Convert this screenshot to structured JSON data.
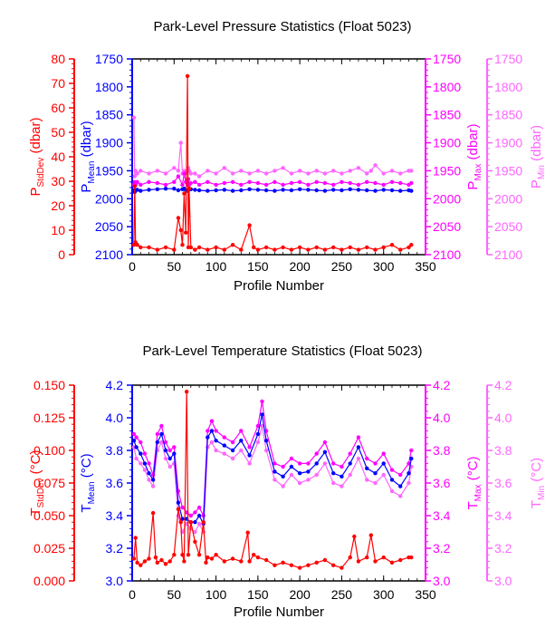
{
  "colors": {
    "stddev": "#ff0000",
    "mean": "#0000ff",
    "max": "#ff00ff",
    "min": "#ff66ff",
    "axis": "#000000"
  },
  "chart_data": [
    {
      "type": "line",
      "title": "Park-Level Pressure Statistics (Float 5023)",
      "xlabel": "Profile Number",
      "xlim": [
        0,
        350
      ],
      "xticks": [
        "0",
        "50",
        "100",
        "150",
        "200",
        "250",
        "300",
        "350"
      ],
      "axes": {
        "stddev": {
          "label_main": "P",
          "label_sub": "StdDev",
          "label_unit": " (dbar)",
          "range": [
            0,
            80
          ],
          "ticks": [
            "0",
            "10",
            "20",
            "30",
            "40",
            "50",
            "60",
            "70",
            "80"
          ]
        },
        "mean": {
          "label_main": "P",
          "label_sub": "Mean",
          "label_unit": " (dbar)",
          "range": [
            2100,
            1750
          ],
          "ticks": [
            "2100",
            "2050",
            "2000",
            "1950",
            "1900",
            "1850",
            "1800",
            "1750"
          ]
        },
        "max": {
          "label_main": "P",
          "label_sub": "Max",
          "label_unit": " (dbar)",
          "range": [
            2100,
            1750
          ],
          "ticks": [
            "2100",
            "2050",
            "2000",
            "1950",
            "1900",
            "1850",
            "1800",
            "1750"
          ]
        },
        "min": {
          "label_main": "P",
          "label_sub": "Min",
          "label_unit": " (dbar)",
          "range": [
            2100,
            1750
          ],
          "ticks": [
            "2100",
            "2050",
            "2000",
            "1950",
            "1900",
            "1850",
            "1800",
            "1750"
          ]
        }
      },
      "series": [
        {
          "key": "min",
          "x": [
            2,
            3,
            4,
            6,
            10,
            20,
            30,
            40,
            50,
            55,
            58,
            60,
            62,
            64,
            66,
            67,
            68,
            70,
            75,
            80,
            90,
            100,
            110,
            120,
            130,
            140,
            150,
            160,
            170,
            180,
            190,
            200,
            210,
            220,
            230,
            240,
            250,
            260,
            270,
            280,
            285,
            290,
            300,
            310,
            320,
            330,
            333
          ],
          "y": [
            1855,
            1960,
            1950,
            1955,
            1950,
            1955,
            1950,
            1955,
            1945,
            1950,
            1900,
            1955,
            1950,
            1955,
            1950,
            1945,
            1950,
            1955,
            1955,
            1960,
            1950,
            1955,
            1945,
            1955,
            1950,
            1955,
            1950,
            1955,
            1950,
            1945,
            1955,
            1950,
            1955,
            1950,
            1955,
            1950,
            1955,
            1950,
            1945,
            1955,
            1950,
            1940,
            1955,
            1950,
            1955,
            1950,
            1950
          ]
        },
        {
          "key": "max",
          "x": [
            2,
            3,
            4,
            6,
            10,
            20,
            30,
            40,
            50,
            55,
            60,
            62,
            64,
            66,
            67,
            68,
            70,
            75,
            80,
            90,
            100,
            110,
            120,
            130,
            140,
            150,
            160,
            170,
            180,
            190,
            200,
            210,
            220,
            230,
            240,
            250,
            260,
            270,
            280,
            290,
            300,
            310,
            320,
            330,
            333
          ],
          "y": [
            1975,
            1970,
            1975,
            1970,
            1975,
            1970,
            1972,
            1975,
            1970,
            1960,
            1975,
            1955,
            1970,
            1975,
            1965,
            1975,
            1972,
            1970,
            1975,
            1970,
            1975,
            1972,
            1970,
            1975,
            1970,
            1972,
            1975,
            1970,
            1975,
            1972,
            1970,
            1975,
            1970,
            1972,
            1975,
            1970,
            1972,
            1975,
            1970,
            1972,
            1975,
            1970,
            1972,
            1975,
            1972
          ]
        },
        {
          "key": "mean",
          "x": [
            2,
            3,
            4,
            6,
            10,
            20,
            30,
            40,
            50,
            55,
            60,
            62,
            64,
            66,
            67,
            68,
            70,
            75,
            80,
            90,
            100,
            110,
            120,
            130,
            140,
            150,
            160,
            170,
            180,
            190,
            200,
            210,
            220,
            230,
            240,
            250,
            260,
            270,
            280,
            290,
            300,
            310,
            320,
            330,
            333
          ],
          "y": [
            1985,
            1988,
            1985,
            1984,
            1986,
            1984,
            1983,
            1982,
            1982,
            1985,
            1983,
            1982,
            1984,
            1986,
            1985,
            1982,
            1983,
            1984,
            1985,
            1986,
            1985,
            1984,
            1986,
            1985,
            1983,
            1984,
            1985,
            1986,
            1984,
            1985,
            1983,
            1984,
            1985,
            1986,
            1984,
            1985,
            1983,
            1984,
            1985,
            1986,
            1984,
            1985,
            1986,
            1985,
            1986
          ]
        },
        {
          "key": "stddev",
          "x": [
            2,
            3,
            4,
            6,
            10,
            20,
            30,
            40,
            50,
            55,
            58,
            60,
            62,
            64,
            66,
            67,
            68,
            70,
            75,
            80,
            90,
            100,
            110,
            120,
            130,
            140,
            145,
            150,
            160,
            170,
            180,
            190,
            200,
            210,
            220,
            230,
            240,
            250,
            260,
            270,
            280,
            290,
            300,
            310,
            320,
            330,
            333
          ],
          "y": [
            4,
            28,
            5,
            4,
            3,
            3,
            2,
            3,
            2,
            15,
            10,
            4,
            25,
            9,
            73,
            3,
            27,
            3,
            2,
            3,
            2,
            3,
            2,
            4,
            2,
            12,
            3,
            2,
            3,
            2,
            3,
            2,
            3,
            2,
            3,
            2,
            3,
            2,
            3,
            2,
            3,
            2,
            3,
            4,
            2,
            3,
            4
          ]
        }
      ]
    },
    {
      "type": "line",
      "title": "Park-Level Temperature Statistics (Float 5023)",
      "xlabel": "Profile Number",
      "xlim": [
        0,
        350
      ],
      "xticks": [
        "0",
        "50",
        "100",
        "150",
        "200",
        "250",
        "300",
        "350"
      ],
      "axes": {
        "stddev": {
          "label_main": "T",
          "label_sub": "StdDev",
          "label_unit": " (°C)",
          "range": [
            0,
            0.15
          ],
          "ticks": [
            "0.000",
            "0.025",
            "0.050",
            "0.075",
            "0.100",
            "0.125",
            "0.150"
          ]
        },
        "mean": {
          "label_main": "T",
          "label_sub": "Mean",
          "label_unit": " (°C)",
          "range": [
            3.0,
            4.2
          ],
          "ticks": [
            "3.0",
            "3.2",
            "3.4",
            "3.6",
            "3.8",
            "4.0",
            "4.2"
          ]
        },
        "max": {
          "label_main": "T",
          "label_sub": "Max",
          "label_unit": " (°C)",
          "range": [
            3.0,
            4.2
          ],
          "ticks": [
            "3.0",
            "3.2",
            "3.4",
            "3.6",
            "3.8",
            "4.0",
            "4.2"
          ]
        },
        "min": {
          "label_main": "T",
          "label_sub": "Min",
          "label_unit": " (°C)",
          "range": [
            3.0,
            4.2
          ],
          "ticks": [
            "3.0",
            "3.2",
            "3.4",
            "3.6",
            "3.8",
            "4.0",
            "4.2"
          ]
        }
      },
      "series": [
        {
          "key": "min",
          "x": [
            2,
            5,
            10,
            15,
            20,
            25,
            30,
            35,
            40,
            45,
            50,
            55,
            60,
            65,
            70,
            75,
            80,
            85,
            90,
            95,
            100,
            110,
            120,
            130,
            140,
            150,
            155,
            160,
            170,
            180,
            190,
            200,
            210,
            220,
            230,
            240,
            250,
            260,
            270,
            280,
            290,
            300,
            310,
            320,
            330,
            333
          ],
          "y": [
            3.82,
            3.75,
            3.72,
            3.68,
            3.62,
            3.58,
            3.8,
            3.85,
            3.75,
            3.7,
            3.72,
            3.4,
            3.3,
            3.35,
            3.32,
            3.3,
            3.35,
            3.3,
            3.82,
            3.85,
            3.8,
            3.78,
            3.75,
            3.8,
            3.72,
            3.85,
            3.95,
            3.8,
            3.62,
            3.58,
            3.65,
            3.6,
            3.62,
            3.65,
            3.72,
            3.6,
            3.58,
            3.65,
            3.75,
            3.62,
            3.6,
            3.65,
            3.55,
            3.52,
            3.6,
            3.7
          ]
        },
        {
          "key": "max",
          "x": [
            2,
            5,
            10,
            15,
            20,
            25,
            30,
            35,
            40,
            45,
            50,
            55,
            60,
            65,
            70,
            75,
            80,
            85,
            90,
            95,
            100,
            110,
            120,
            130,
            140,
            150,
            155,
            160,
            170,
            180,
            190,
            200,
            210,
            220,
            230,
            240,
            250,
            260,
            270,
            280,
            290,
            300,
            310,
            320,
            330,
            333
          ],
          "y": [
            3.9,
            3.88,
            3.85,
            3.78,
            3.72,
            3.65,
            3.9,
            3.95,
            3.85,
            3.8,
            3.82,
            3.55,
            3.45,
            3.42,
            3.4,
            3.42,
            3.45,
            3.4,
            3.92,
            3.98,
            3.92,
            3.88,
            3.85,
            3.92,
            3.82,
            3.95,
            4.1,
            3.92,
            3.72,
            3.7,
            3.75,
            3.72,
            3.72,
            3.78,
            3.85,
            3.72,
            3.7,
            3.78,
            3.88,
            3.75,
            3.72,
            3.78,
            3.68,
            3.65,
            3.72,
            3.8
          ]
        },
        {
          "key": "mean",
          "x": [
            2,
            5,
            10,
            15,
            20,
            25,
            30,
            35,
            40,
            45,
            50,
            55,
            60,
            65,
            70,
            75,
            80,
            85,
            90,
            95,
            100,
            110,
            120,
            130,
            140,
            150,
            155,
            160,
            170,
            180,
            190,
            200,
            210,
            220,
            230,
            240,
            250,
            260,
            270,
            280,
            290,
            300,
            310,
            320,
            330,
            333
          ],
          "y": [
            3.86,
            3.82,
            3.78,
            3.72,
            3.66,
            3.62,
            3.85,
            3.9,
            3.8,
            3.75,
            3.78,
            3.48,
            3.38,
            3.38,
            3.36,
            3.36,
            3.4,
            3.35,
            3.88,
            3.92,
            3.86,
            3.83,
            3.8,
            3.86,
            3.77,
            3.9,
            4.02,
            3.86,
            3.67,
            3.64,
            3.7,
            3.66,
            3.67,
            3.72,
            3.79,
            3.66,
            3.64,
            3.72,
            3.82,
            3.69,
            3.66,
            3.72,
            3.62,
            3.58,
            3.66,
            3.75
          ]
        },
        {
          "key": "stddev",
          "x": [
            2,
            4,
            6,
            10,
            15,
            20,
            25,
            28,
            30,
            35,
            40,
            45,
            50,
            55,
            58,
            60,
            62,
            65,
            67,
            70,
            75,
            80,
            85,
            88,
            90,
            95,
            100,
            110,
            120,
            130,
            138,
            140,
            145,
            150,
            160,
            170,
            180,
            190,
            200,
            210,
            220,
            230,
            240,
            250,
            260,
            265,
            270,
            280,
            285,
            290,
            300,
            310,
            320,
            330,
            333
          ],
          "y": [
            0.017,
            0.033,
            0.014,
            0.012,
            0.015,
            0.017,
            0.052,
            0.018,
            0.014,
            0.016,
            0.013,
            0.015,
            0.02,
            0.055,
            0.045,
            0.02,
            0.015,
            0.145,
            0.02,
            0.045,
            0.03,
            0.02,
            0.045,
            0.014,
            0.018,
            0.017,
            0.02,
            0.015,
            0.017,
            0.015,
            0.037,
            0.015,
            0.02,
            0.018,
            0.016,
            0.012,
            0.014,
            0.012,
            0.01,
            0.012,
            0.014,
            0.016,
            0.012,
            0.01,
            0.018,
            0.034,
            0.015,
            0.018,
            0.035,
            0.015,
            0.018,
            0.014,
            0.016,
            0.018,
            0.018
          ]
        }
      ]
    }
  ]
}
